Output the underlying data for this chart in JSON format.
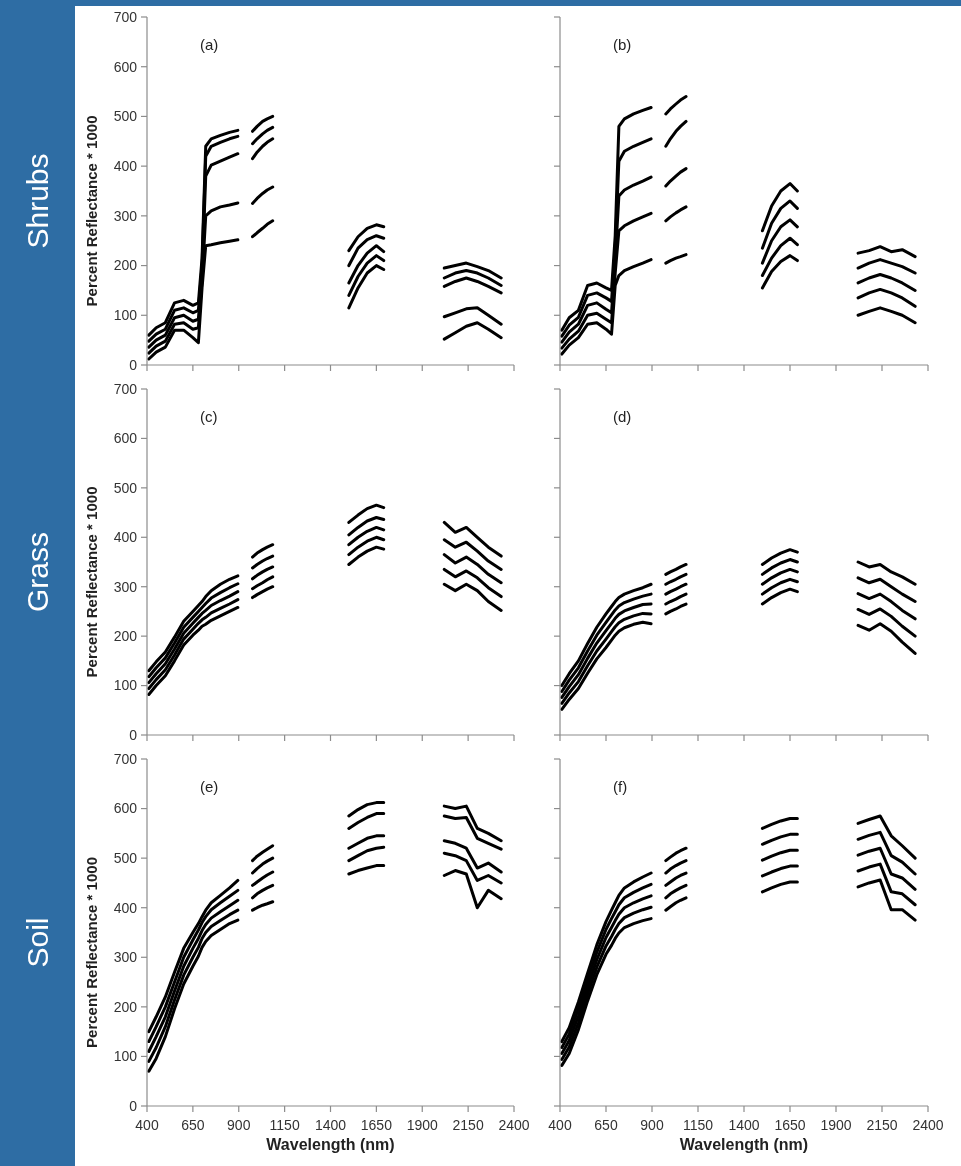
{
  "chart_data": [
    {
      "type": "line",
      "ylabel": "Percent Reflectance * 1000",
      "annotations": [
        "(a)",
        "Shrubs"
      ],
      "tick_labels": "y",
      "xlim": [
        400,
        2400
      ],
      "xticks": [
        400,
        650,
        900,
        1150,
        1400,
        1650,
        1900,
        2150,
        2400
      ],
      "ylim": [
        0,
        700
      ],
      "yticks": [
        0,
        100,
        200,
        300,
        400,
        500,
        600,
        700
      ],
      "x": [
        410,
        450,
        500,
        550,
        600,
        650,
        680,
        700,
        720,
        750,
        800,
        850,
        895,
        935,
        975,
        1000,
        1030,
        1055,
        1085,
        1290,
        1500,
        1550,
        1600,
        1650,
        1690,
        1850,
        2020,
        2080,
        2140,
        2200,
        2260,
        2330
      ],
      "series": [
        {
          "color": "#000000",
          "values": [
            60,
            75,
            85,
            125,
            130,
            120,
            125,
            215,
            440,
            455,
            462,
            468,
            472,
            null,
            470,
            480,
            490,
            495,
            500,
            null,
            230,
            258,
            275,
            282,
            278,
            null,
            195,
            200,
            205,
            198,
            190,
            175
          ]
        },
        {
          "color": "#000000",
          "values": [
            48,
            62,
            72,
            110,
            115,
            105,
            110,
            200,
            420,
            440,
            448,
            455,
            460,
            null,
            445,
            455,
            465,
            472,
            478,
            null,
            200,
            235,
            252,
            260,
            255,
            null,
            175,
            185,
            190,
            185,
            175,
            160
          ]
        },
        {
          "color": "#000000",
          "values": [
            36,
            50,
            60,
            95,
            100,
            88,
            92,
            185,
            380,
            402,
            410,
            418,
            425,
            null,
            415,
            428,
            440,
            448,
            455,
            null,
            165,
            200,
            225,
            240,
            228,
            null,
            158,
            168,
            175,
            168,
            158,
            145
          ]
        },
        {
          "color": "#000000",
          "values": [
            24,
            38,
            48,
            82,
            85,
            72,
            75,
            170,
            300,
            310,
            318,
            322,
            326,
            null,
            325,
            335,
            345,
            352,
            358,
            null,
            140,
            178,
            205,
            220,
            210,
            null,
            97,
            105,
            113,
            115,
            100,
            82
          ]
        },
        {
          "color": "#000000",
          "values": [
            12,
            26,
            36,
            70,
            70,
            55,
            45,
            155,
            240,
            242,
            246,
            249,
            252,
            null,
            258,
            266,
            275,
            283,
            290,
            null,
            115,
            155,
            185,
            200,
            192,
            null,
            52,
            65,
            78,
            85,
            72,
            55
          ]
        }
      ]
    },
    {
      "type": "line",
      "annotations": [
        "(b)"
      ],
      "tick_labels": false,
      "xlim": [
        400,
        2400
      ],
      "xticks": [
        400,
        650,
        900,
        1150,
        1400,
        1650,
        1900,
        2150,
        2400
      ],
      "ylim": [
        0,
        700
      ],
      "yticks": [
        0,
        100,
        200,
        300,
        400,
        500,
        600,
        700
      ],
      "x": [
        410,
        450,
        500,
        550,
        600,
        650,
        680,
        700,
        720,
        750,
        800,
        850,
        895,
        935,
        975,
        1000,
        1030,
        1055,
        1085,
        1290,
        1500,
        1550,
        1600,
        1650,
        1690,
        1850,
        2020,
        2080,
        2140,
        2200,
        2260,
        2330
      ],
      "series": [
        {
          "color": "#000000",
          "values": [
            70,
            95,
            110,
            160,
            165,
            155,
            150,
            260,
            480,
            495,
            505,
            512,
            518,
            null,
            505,
            515,
            525,
            533,
            540,
            null,
            270,
            320,
            350,
            365,
            350,
            null,
            225,
            230,
            238,
            228,
            232,
            218
          ]
        },
        {
          "color": "#000000",
          "values": [
            58,
            80,
            96,
            140,
            145,
            135,
            128,
            235,
            410,
            430,
            440,
            448,
            455,
            null,
            440,
            455,
            470,
            480,
            490,
            null,
            235,
            285,
            315,
            330,
            315,
            null,
            195,
            205,
            212,
            205,
            198,
            185
          ]
        },
        {
          "color": "#000000",
          "values": [
            46,
            66,
            82,
            120,
            125,
            112,
            105,
            210,
            340,
            352,
            362,
            370,
            378,
            null,
            360,
            370,
            380,
            388,
            395,
            null,
            205,
            250,
            278,
            292,
            278,
            null,
            165,
            175,
            182,
            175,
            165,
            150
          ]
        },
        {
          "color": "#000000",
          "values": [
            34,
            52,
            68,
            100,
            104,
            92,
            85,
            185,
            270,
            280,
            290,
            298,
            305,
            null,
            290,
            298,
            306,
            312,
            318,
            null,
            180,
            215,
            240,
            255,
            242,
            null,
            135,
            145,
            152,
            145,
            135,
            118
          ]
        },
        {
          "color": "#000000",
          "values": [
            22,
            40,
            55,
            82,
            85,
            72,
            62,
            160,
            180,
            190,
            198,
            205,
            212,
            null,
            205,
            210,
            215,
            218,
            222,
            null,
            155,
            188,
            208,
            220,
            210,
            null,
            100,
            108,
            115,
            108,
            100,
            85
          ]
        }
      ]
    },
    {
      "type": "line",
      "ylabel": "Percent Reflectance * 1000",
      "annotations": [
        "(c)",
        "Grass"
      ],
      "tick_labels": "y",
      "xlim": [
        400,
        2400
      ],
      "xticks": [
        400,
        650,
        900,
        1150,
        1400,
        1650,
        1900,
        2150,
        2400
      ],
      "ylim": [
        0,
        700
      ],
      "yticks": [
        0,
        100,
        200,
        300,
        400,
        500,
        600,
        700
      ],
      "x": [
        410,
        450,
        500,
        550,
        600,
        650,
        680,
        700,
        720,
        750,
        800,
        850,
        895,
        935,
        975,
        1000,
        1030,
        1055,
        1085,
        1290,
        1500,
        1550,
        1600,
        1650,
        1690,
        1850,
        2020,
        2080,
        2140,
        2200,
        2260,
        2330
      ],
      "series": [
        {
          "color": "#000000",
          "values": [
            130,
            148,
            168,
            198,
            230,
            250,
            262,
            270,
            280,
            292,
            305,
            315,
            322,
            null,
            360,
            368,
            375,
            380,
            385,
            null,
            430,
            445,
            458,
            465,
            460,
            null,
            430,
            410,
            420,
            400,
            380,
            362
          ]
        },
        {
          "color": "#000000",
          "values": [
            118,
            136,
            156,
            186,
            218,
            238,
            250,
            258,
            266,
            277,
            288,
            298,
            306,
            null,
            338,
            345,
            352,
            357,
            362,
            null,
            405,
            420,
            433,
            440,
            436,
            null,
            395,
            380,
            390,
            372,
            352,
            335
          ]
        },
        {
          "color": "#000000",
          "values": [
            106,
            124,
            144,
            174,
            206,
            226,
            238,
            246,
            252,
            262,
            272,
            281,
            290,
            null,
            316,
            323,
            330,
            335,
            340,
            null,
            385,
            400,
            412,
            420,
            415,
            null,
            365,
            348,
            360,
            345,
            325,
            308
          ]
        },
        {
          "color": "#000000",
          "values": [
            94,
            112,
            132,
            162,
            194,
            214,
            226,
            233,
            238,
            247,
            256,
            265,
            274,
            null,
            296,
            302,
            308,
            314,
            320,
            null,
            365,
            380,
            392,
            400,
            395,
            null,
            335,
            320,
            332,
            318,
            298,
            280
          ]
        },
        {
          "color": "#000000",
          "values": [
            82,
            100,
            120,
            150,
            182,
            202,
            212,
            220,
            224,
            232,
            241,
            250,
            258,
            null,
            278,
            284,
            290,
            295,
            300,
            null,
            345,
            360,
            372,
            380,
            376,
            null,
            305,
            292,
            305,
            292,
            270,
            252
          ]
        }
      ]
    },
    {
      "type": "line",
      "annotations": [
        "(d)"
      ],
      "tick_labels": false,
      "xlim": [
        400,
        2400
      ],
      "xticks": [
        400,
        650,
        900,
        1150,
        1400,
        1650,
        1900,
        2150,
        2400
      ],
      "ylim": [
        0,
        700
      ],
      "yticks": [
        0,
        100,
        200,
        300,
        400,
        500,
        600,
        700
      ],
      "x": [
        410,
        450,
        500,
        550,
        600,
        650,
        680,
        700,
        720,
        750,
        800,
        850,
        895,
        935,
        975,
        1000,
        1030,
        1055,
        1085,
        1290,
        1500,
        1550,
        1600,
        1650,
        1690,
        1850,
        2020,
        2080,
        2140,
        2200,
        2260,
        2330
      ],
      "series": [
        {
          "color": "#000000",
          "values": [
            100,
            124,
            150,
            185,
            218,
            245,
            260,
            270,
            278,
            285,
            292,
            298,
            305,
            null,
            325,
            330,
            335,
            340,
            345,
            null,
            345,
            358,
            368,
            375,
            370,
            null,
            350,
            340,
            345,
            330,
            320,
            305
          ]
        },
        {
          "color": "#000000",
          "values": [
            88,
            111,
            136,
            170,
            202,
            228,
            243,
            253,
            261,
            268,
            275,
            281,
            285,
            null,
            305,
            310,
            315,
            320,
            325,
            null,
            325,
            338,
            348,
            355,
            350,
            null,
            318,
            308,
            315,
            300,
            285,
            270
          ]
        },
        {
          "color": "#000000",
          "values": [
            76,
            98,
            122,
            155,
            186,
            211,
            226,
            236,
            244,
            251,
            258,
            264,
            265,
            null,
            285,
            290,
            295,
            300,
            305,
            null,
            305,
            318,
            328,
            335,
            330,
            null,
            286,
            276,
            285,
            270,
            252,
            235
          ]
        },
        {
          "color": "#000000",
          "values": [
            64,
            85,
            108,
            140,
            170,
            194,
            209,
            219,
            227,
            234,
            241,
            246,
            245,
            null,
            265,
            270,
            275,
            280,
            285,
            null,
            285,
            298,
            308,
            315,
            310,
            null,
            254,
            244,
            255,
            240,
            220,
            200
          ]
        },
        {
          "color": "#000000",
          "values": [
            52,
            72,
            94,
            125,
            154,
            177,
            192,
            202,
            210,
            217,
            224,
            228,
            225,
            null,
            245,
            250,
            255,
            260,
            265,
            null,
            265,
            278,
            288,
            295,
            290,
            null,
            222,
            212,
            225,
            210,
            188,
            165
          ]
        }
      ]
    },
    {
      "type": "line",
      "xlabel": "Wavelength (nm)",
      "ylabel": "Percent Reflectance * 1000",
      "annotations": [
        "(e)",
        "Soil"
      ],
      "xlim": [
        400,
        2400
      ],
      "xticks": [
        400,
        650,
        900,
        1150,
        1400,
        1650,
        1900,
        2150,
        2400
      ],
      "ylim": [
        0,
        700
      ],
      "yticks": [
        0,
        100,
        200,
        300,
        400,
        500,
        600,
        700
      ],
      "x": [
        410,
        450,
        500,
        550,
        600,
        650,
        680,
        700,
        720,
        750,
        800,
        850,
        895,
        935,
        975,
        1000,
        1030,
        1055,
        1085,
        1290,
        1500,
        1550,
        1600,
        1650,
        1690,
        1850,
        2020,
        2080,
        2140,
        2200,
        2260,
        2330
      ],
      "series": [
        {
          "color": "#000000",
          "values": [
            150,
            180,
            220,
            270,
            318,
            350,
            368,
            382,
            395,
            410,
            425,
            440,
            455,
            null,
            495,
            504,
            512,
            518,
            525,
            null,
            585,
            598,
            608,
            612,
            612,
            null,
            605,
            600,
            605,
            560,
            550,
            535
          ]
        },
        {
          "color": "#000000",
          "values": [
            130,
            160,
            200,
            250,
            300,
            335,
            355,
            370,
            382,
            396,
            410,
            423,
            435,
            null,
            470,
            479,
            488,
            494,
            500,
            null,
            560,
            572,
            582,
            590,
            590,
            null,
            585,
            580,
            582,
            540,
            530,
            518
          ]
        },
        {
          "color": "#000000",
          "values": [
            110,
            140,
            180,
            232,
            282,
            318,
            338,
            354,
            366,
            379,
            392,
            404,
            415,
            null,
            445,
            452,
            460,
            466,
            472,
            null,
            520,
            530,
            540,
            545,
            545,
            null,
            535,
            530,
            520,
            480,
            490,
            472
          ]
        },
        {
          "color": "#000000",
          "values": [
            90,
            118,
            160,
            214,
            264,
            300,
            320,
            338,
            350,
            362,
            374,
            386,
            395,
            null,
            420,
            428,
            435,
            440,
            445,
            null,
            495,
            505,
            515,
            520,
            522,
            null,
            510,
            505,
            495,
            455,
            465,
            450
          ]
        },
        {
          "color": "#000000",
          "values": [
            70,
            96,
            140,
            196,
            246,
            282,
            302,
            320,
            332,
            344,
            356,
            368,
            375,
            null,
            395,
            400,
            405,
            408,
            412,
            null,
            468,
            475,
            480,
            485,
            485,
            null,
            465,
            475,
            468,
            400,
            435,
            418
          ]
        }
      ]
    },
    {
      "type": "line",
      "xlabel": "Wavelength (nm)",
      "annotations": [
        "(f)"
      ],
      "tick_labels": "x",
      "xlim": [
        400,
        2400
      ],
      "xticks": [
        400,
        650,
        900,
        1150,
        1400,
        1650,
        1900,
        2150,
        2400
      ],
      "ylim": [
        0,
        700
      ],
      "yticks": [
        0,
        100,
        200,
        300,
        400,
        500,
        600,
        700
      ],
      "x": [
        410,
        450,
        500,
        550,
        600,
        650,
        680,
        700,
        720,
        750,
        800,
        850,
        895,
        935,
        975,
        1000,
        1030,
        1055,
        1085,
        1290,
        1500,
        1550,
        1600,
        1650,
        1690,
        1850,
        2020,
        2080,
        2140,
        2200,
        2260,
        2330
      ],
      "series": [
        {
          "color": "#000000",
          "values": [
            130,
            158,
            210,
            268,
            325,
            372,
            395,
            410,
            425,
            440,
            452,
            462,
            470,
            null,
            495,
            502,
            510,
            515,
            520,
            null,
            560,
            568,
            575,
            580,
            580,
            null,
            570,
            578,
            585,
            545,
            525,
            500
          ]
        },
        {
          "color": "#000000",
          "values": [
            118,
            145,
            196,
            254,
            310,
            356,
            378,
            392,
            406,
            420,
            431,
            440,
            447,
            null,
            470,
            478,
            485,
            490,
            495,
            null,
            528,
            536,
            543,
            548,
            548,
            null,
            538,
            546,
            552,
            505,
            492,
            468
          ]
        },
        {
          "color": "#000000",
          "values": [
            106,
            132,
            182,
            240,
            295,
            340,
            360,
            374,
            387,
            400,
            410,
            418,
            424,
            null,
            445,
            452,
            460,
            465,
            470,
            null,
            496,
            504,
            511,
            516,
            516,
            null,
            506,
            514,
            520,
            468,
            460,
            437
          ]
        },
        {
          "color": "#000000",
          "values": [
            94,
            119,
            168,
            226,
            280,
            323,
            342,
            356,
            368,
            380,
            389,
            396,
            401,
            null,
            420,
            428,
            435,
            440,
            445,
            null,
            464,
            472,
            479,
            484,
            484,
            null,
            474,
            482,
            488,
            432,
            428,
            406
          ]
        },
        {
          "color": "#000000",
          "values": [
            82,
            106,
            154,
            212,
            265,
            306,
            324,
            338,
            349,
            360,
            368,
            374,
            378,
            null,
            395,
            402,
            410,
            415,
            420,
            null,
            432,
            440,
            447,
            452,
            452,
            null,
            442,
            450,
            456,
            396,
            396,
            375
          ]
        }
      ]
    }
  ]
}
